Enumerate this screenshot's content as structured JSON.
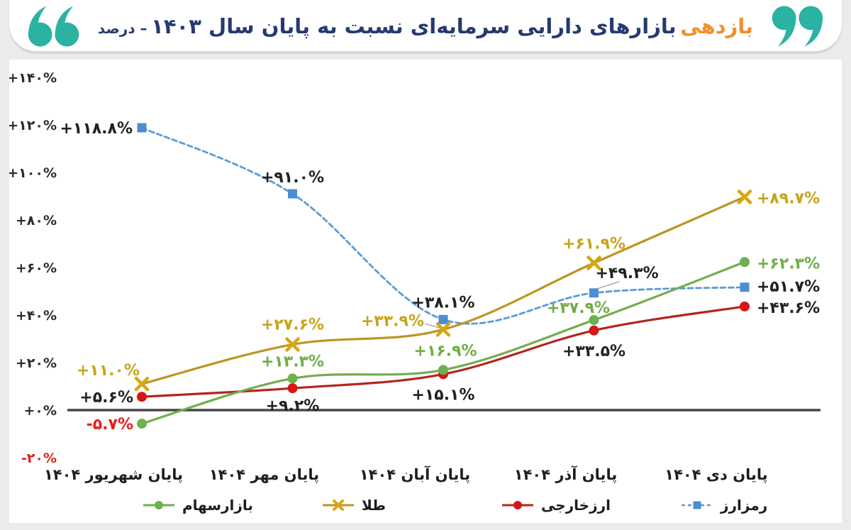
{
  "header": {
    "title_highlight": "بازدهی",
    "title_main": "بازارهای دارایی سرمایه‌ای نسبت به پایان سال ۱۴۰۳",
    "title_suffix": "– درصد",
    "quote_color": "#2ab3a2"
  },
  "chart_data": {
    "type": "line",
    "title": "بازدهی بازارهای دارایی سرمایه‌ای نسبت به پایان سال ۱۴۰۳ - درصد",
    "unit": "percent",
    "grid": false,
    "legend_position": "bottom",
    "ylim": [
      -20,
      150
    ],
    "categories": [
      "پایان شهریور ۱۴۰۴",
      "پایان مهر ۱۴۰۴",
      "پایان آبان ۱۴۰۴",
      "پایان آذر ۱۴۰۴",
      "پایان دی ۱۴۰۴"
    ],
    "y_ticks": [
      {
        "value": 140,
        "label": "+۱۴۰%",
        "color": "#2b2b2b"
      },
      {
        "value": 120,
        "label": "+۱۲۰%",
        "color": "#2b2b2b"
      },
      {
        "value": 100,
        "label": "+۱۰۰%",
        "color": "#2b2b2b"
      },
      {
        "value": 80,
        "label": "+۸۰%",
        "color": "#2b2b2b"
      },
      {
        "value": 60,
        "label": "+۶۰%",
        "color": "#2b2b2b"
      },
      {
        "value": 40,
        "label": "+۴۰%",
        "color": "#2b2b2b"
      },
      {
        "value": 20,
        "label": "+۲۰%",
        "color": "#2b2b2b"
      },
      {
        "value": 0,
        "label": "+۰%",
        "color": "#2b2b2b"
      },
      {
        "value": -20,
        "label": "-۲۰%",
        "color": "#e02318"
      }
    ],
    "series": [
      {
        "id": "stock-market",
        "name": "بازارسهام",
        "line_color": "#72ad4d",
        "marker_color": "#6db04f",
        "label_color": "#70ad47",
        "marker": "circle",
        "dash": "solid",
        "values": [
          -5.7,
          13.3,
          16.9,
          37.9,
          62.3
        ],
        "labels": [
          "-۵.۷%",
          "+۱۳.۳%",
          "+۱۶.۹%",
          "+۳۷.۹%",
          "+۶۲.۳%"
        ],
        "label_colors": [
          "#e02318",
          "#70ad47",
          "#70ad47",
          "#70ad47",
          "#70ad47"
        ]
      },
      {
        "id": "gold",
        "name": "طلا",
        "line_color": "#bd9520",
        "marker_color": "#d6a712",
        "label_color": "#c7a41c",
        "marker": "x",
        "dash": "solid",
        "values": [
          11.0,
          27.6,
          33.9,
          61.9,
          89.7
        ],
        "labels": [
          "+۱۱.۰%",
          "+۲۷.۶%",
          "+۳۳.۹%",
          "+۶۱.۹%",
          "+۸۹.۷%"
        ],
        "label_colors": [
          "#c7a41c",
          "#c7a41c",
          "#c7a41c",
          "#c7a41c",
          "#c7a41c"
        ]
      },
      {
        "id": "foreign-currency",
        "name": "ارزخارجی",
        "line_color": "#b3261d",
        "marker_color": "#d71616",
        "label_color": "#222222",
        "marker": "circle",
        "dash": "solid",
        "values": [
          5.6,
          9.2,
          15.1,
          33.5,
          43.6
        ],
        "labels": [
          "+۵.۶%",
          "+۹.۲%",
          "+۱۵.۱%",
          "+۳۳.۵%",
          "+۴۳.۶%"
        ],
        "label_colors": [
          "#222222",
          "#222222",
          "#222222",
          "#222222",
          "#222222"
        ]
      },
      {
        "id": "crypto",
        "name": "رمزارز",
        "line_color": "#5b9bd5",
        "marker_color": "#4a8ed2",
        "label_color": "#222222",
        "marker": "square",
        "dash": "dashed",
        "values": [
          118.8,
          91.0,
          38.1,
          49.3,
          51.7
        ],
        "labels": [
          "+۱۱۸.۸%",
          "+۹۱.۰%",
          "+۳۸.۱%",
          "+۴۹.۳%",
          "+۵۱.۷%"
        ],
        "label_colors": [
          "#222222",
          "#222222",
          "#222222",
          "#222222",
          "#222222"
        ]
      }
    ]
  }
}
